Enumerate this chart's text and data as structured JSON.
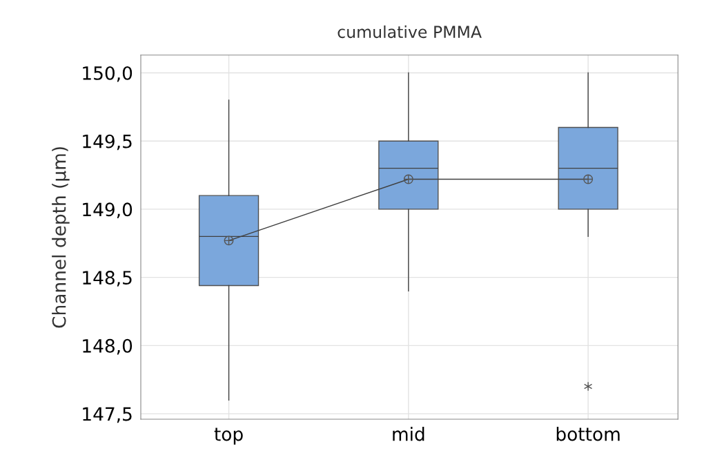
{
  "chart_data": {
    "type": "box",
    "title": "cumulative PMMA",
    "ylabel": "Channel depth (µm)",
    "categories": [
      "top",
      "mid",
      "bottom"
    ],
    "boxes": [
      {
        "low": 147.6,
        "q1": 148.44,
        "median": 148.8,
        "q3": 149.1,
        "high": 149.8,
        "mean": 148.77
      },
      {
        "low": 148.4,
        "q1": 149.0,
        "median": 149.3,
        "q3": 149.5,
        "high": 150.0,
        "mean": 149.22
      },
      {
        "low": 148.8,
        "q1": 149.0,
        "median": 149.3,
        "q3": 149.6,
        "high": 150.0,
        "mean": 149.22,
        "outliers": [
          147.7
        ]
      }
    ],
    "color": "#7ba7dc",
    "series": [
      {
        "type": "line",
        "color": "#404040",
        "values": [
          148.77,
          149.22,
          149.22
        ]
      }
    ],
    "ylim": [
      147.46,
      150.13
    ],
    "yticks": [
      {
        "value": 147.5,
        "label": "147,5"
      },
      {
        "value": 148.0,
        "label": "148,0"
      },
      {
        "value": 148.5,
        "label": "148,5"
      },
      {
        "value": 149.0,
        "label": "149,0"
      },
      {
        "value": 149.5,
        "label": "149,5"
      },
      {
        "value": 150.0,
        "label": "150,0"
      }
    ],
    "grid": true
  }
}
